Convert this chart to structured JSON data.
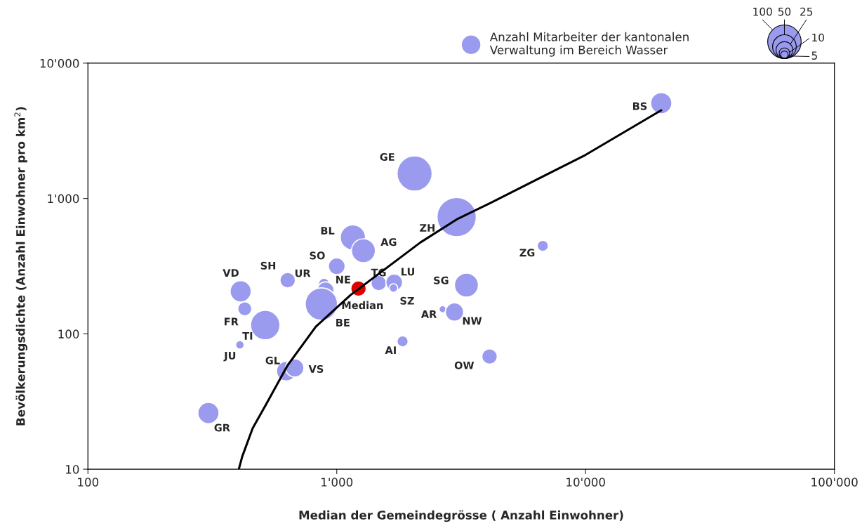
{
  "chart_data": {
    "type": "bubble",
    "xlabel": "Median der Gemeindegrösse ( Anzahl Einwohner)",
    "ylabel": "Bevölkerungsdichte (Anzahl Einwohner pro km$^{2}$)",
    "log": "xy",
    "xlim": [
      100,
      100000
    ],
    "ylim": [
      10,
      10000
    ],
    "xticks": [
      100,
      {
        "value": 1000,
        "label": "1'000"
      },
      {
        "value": 10000,
        "label": "10'000"
      },
      {
        "value": 100000,
        "label": "100'000"
      }
    ],
    "yticks": [
      10,
      100,
      {
        "value": 1000,
        "label": "1'000"
      },
      {
        "value": 10000,
        "label": "10'000"
      }
    ],
    "grid": false,
    "legend": "top right",
    "size_legend": [
      100,
      50,
      25,
      10,
      5
    ],
    "series": [
      {
        "name": "Anzahl Mitarbeiter der kantonalen Verwaltung im Bereich Wasser",
        "color": "#9a9aee",
        "x": [
          20140,
          2055,
          3033,
          6730,
          1161,
          1280,
          1000,
          635,
          889,
          902,
          867,
          1223,
          1475,
          1702,
          1690,
          3320,
          2663,
          2973,
          411,
          427,
          516,
          408,
          1839,
          4112,
          627,
          678,
          305
        ],
        "values": [
          5060,
          1530,
          729,
          447,
          515,
          411,
          316,
          249,
          234,
          210,
          166,
          216,
          237,
          240,
          218,
          229,
          152,
          145,
          206,
          153,
          116,
          83,
          88,
          68,
          53,
          56,
          26
        ],
        "sizes": [
          43,
          118,
          148,
          12,
          61,
          55,
          27,
          23,
          12,
          27,
          100,
          23,
          23,
          27,
          7,
          55,
          5,
          32,
          43,
          19,
          83,
          7,
          12,
          23,
          37,
          32,
          43
        ],
        "colors": [
          "#9a9aee",
          "#9a9aee",
          "#9a9aee",
          "#9a9aee",
          "#9a9aee",
          "#9a9aee",
          "#9a9aee",
          "#9a9aee",
          "#9a9aee",
          "#9a9aee",
          "#9a9aee",
          "#e00000",
          "#9a9aee",
          "#9a9aee",
          "#9a9aee",
          "#9a9aee",
          "#9a9aee",
          "#9a9aee",
          "#9a9aee",
          "#9a9aee",
          "#9a9aee",
          "#9a9aee",
          "#9a9aee",
          "#9a9aee",
          "#9a9aee",
          "#9a9aee",
          "#9a9aee"
        ],
        "value_labels": [
          "BS",
          "GE",
          "ZH",
          "ZG",
          "BL",
          "AG",
          "SO",
          "SH",
          "UR",
          "NE",
          "BE",
          "Median",
          "TG",
          "LU",
          "SZ",
          "SG",
          "AR",
          "NW",
          "VD",
          "FR",
          "TI",
          "JU",
          "AI",
          "OW",
          "GL",
          "VS",
          "GR"
        ]
      },
      {
        "type": "line",
        "color": "#000000",
        "x": [
          404,
          417,
          459,
          522,
          635,
          824,
          1138,
          2171,
          3033,
          4154,
          10000,
          20140
        ],
        "values": [
          10,
          12.4,
          20,
          30.5,
          58.6,
          113,
          194,
          474,
          700,
          927,
          2100,
          4486
        ]
      }
    ]
  }
}
